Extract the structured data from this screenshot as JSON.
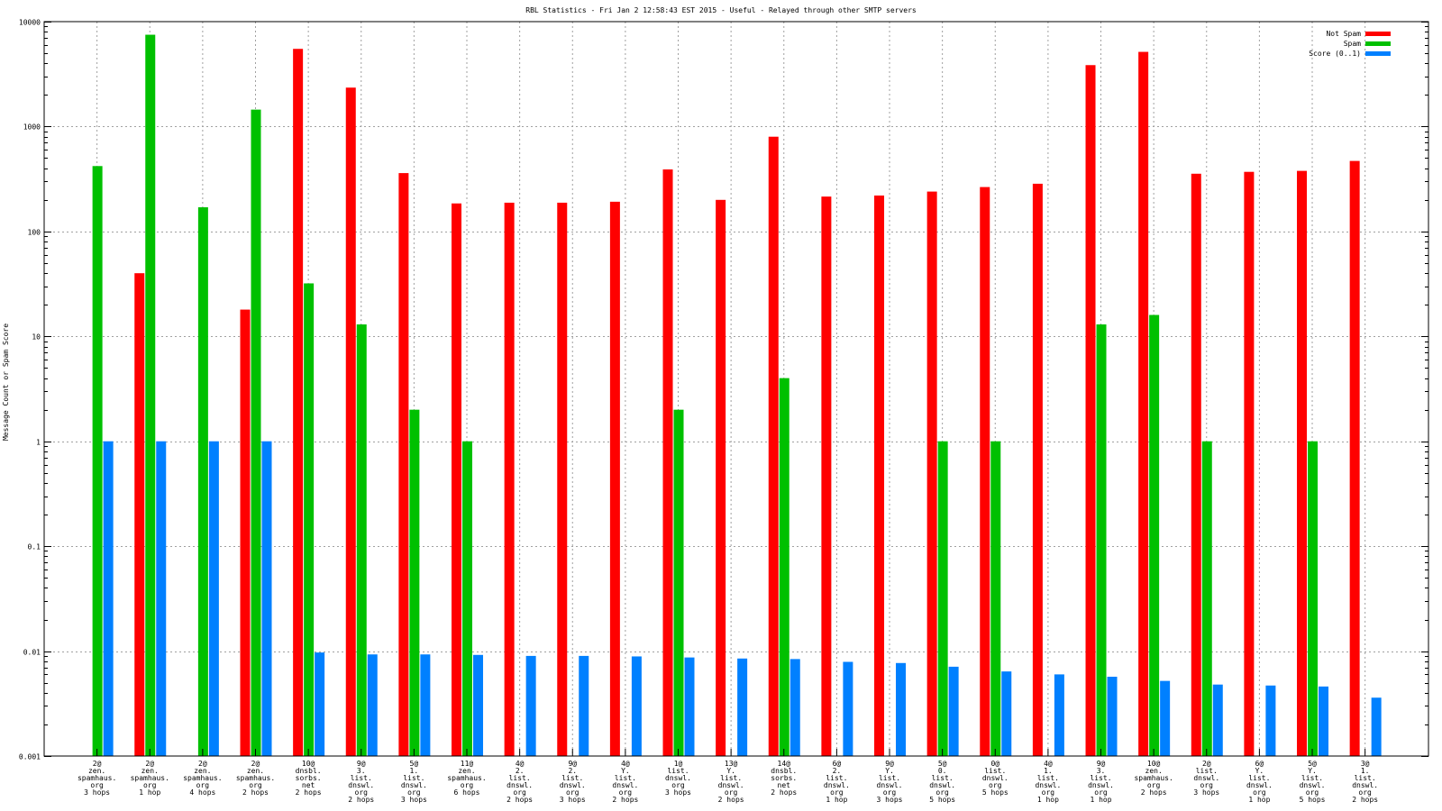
{
  "chart_data": {
    "type": "bar",
    "title": "RBL Statistics - Fri Jan  2 12:58:43 EST 2015 - Useful - Relayed through other SMTP servers",
    "xlabel": "",
    "ylabel": "Message Count or Spam Score",
    "yscale": "log",
    "ylim": [
      0.001,
      10000
    ],
    "yticks": [
      "0.001",
      "0.01",
      "0.1",
      "1",
      "10",
      "100",
      "1000",
      "10000"
    ],
    "grid": true,
    "legend_position": "top-right",
    "categories": [
      [
        "2@",
        "zen.",
        "spamhaus.",
        "org",
        "3 hops"
      ],
      [
        "2@",
        "zen.",
        "spamhaus.",
        "org",
        "1 hop"
      ],
      [
        "2@",
        "zen.",
        "spamhaus.",
        "org",
        "4 hops"
      ],
      [
        "2@",
        "zen.",
        "spamhaus.",
        "org",
        "2 hops"
      ],
      [
        "10@",
        "dnsbl.",
        "sorbs.",
        "net",
        "2 hops"
      ],
      [
        "9@",
        "3.",
        "list.",
        "dnswl.",
        "org",
        "2 hops"
      ],
      [
        "5@",
        "1.",
        "list.",
        "dnswl.",
        "org",
        "3 hops"
      ],
      [
        "11@",
        "zen.",
        "spamhaus.",
        "org",
        "6 hops"
      ],
      [
        "4@",
        "2.",
        "list.",
        "dnswl.",
        "org",
        "2 hops"
      ],
      [
        "9@",
        "2.",
        "list.",
        "dnswl.",
        "org",
        "3 hops"
      ],
      [
        "4@",
        "Y.",
        "list.",
        "dnswl.",
        "org",
        "2 hops"
      ],
      [
        "1@",
        "list.",
        "dnswl.",
        "org",
        "3 hops"
      ],
      [
        "13@",
        "Y.",
        "list.",
        "dnswl.",
        "org",
        "2 hops"
      ],
      [
        "14@",
        "dnsbl.",
        "sorbs.",
        "net",
        "2 hops"
      ],
      [
        "6@",
        "2.",
        "list.",
        "dnswl.",
        "org",
        "1 hop"
      ],
      [
        "9@",
        "Y.",
        "list.",
        "dnswl.",
        "org",
        "3 hops"
      ],
      [
        "5@",
        "0.",
        "list.",
        "dnswl.",
        "org",
        "5 hops"
      ],
      [
        "0@",
        "list.",
        "dnswl.",
        "org",
        "5 hops"
      ],
      [
        "4@",
        "1.",
        "list.",
        "dnswl.",
        "org",
        "1 hop"
      ],
      [
        "9@",
        "3.",
        "list.",
        "dnswl.",
        "org",
        "1 hop"
      ],
      [
        "10@",
        "zen.",
        "spamhaus.",
        "org",
        "2 hops"
      ],
      [
        "2@",
        "list.",
        "dnswl.",
        "org",
        "3 hops"
      ],
      [
        "6@",
        "Y.",
        "list.",
        "dnswl.",
        "org",
        "1 hop"
      ],
      [
        "5@",
        "Y.",
        "list.",
        "dnswl.",
        "org",
        "5 hops"
      ],
      [
        "3@",
        "1.",
        "list.",
        "dnswl.",
        "org",
        "2 hops"
      ]
    ],
    "series": [
      {
        "name": "Not Spam",
        "color": "#ff0000",
        "values": [
          null,
          40,
          null,
          18,
          5500,
          2350,
          360,
          185,
          188,
          188,
          192,
          390,
          200,
          800,
          215,
          220,
          240,
          265,
          285,
          3850,
          5150,
          355,
          370,
          378,
          470
        ]
      },
      {
        "name": "Spam",
        "color": "#00c000",
        "values": [
          420,
          7500,
          170,
          1450,
          32,
          13,
          2,
          1,
          null,
          null,
          null,
          2,
          null,
          4,
          null,
          null,
          1,
          1,
          null,
          13,
          16,
          1,
          null,
          1,
          null
        ]
      },
      {
        "name": "Score (0..1)",
        "color": "#0080ff",
        "values": [
          1,
          1,
          1,
          1,
          0.0097,
          0.0093,
          0.0093,
          0.0092,
          0.009,
          0.009,
          0.0089,
          0.0087,
          0.0085,
          0.0084,
          0.0079,
          0.0077,
          0.0071,
          0.0064,
          0.006,
          0.0057,
          0.0052,
          0.0048,
          0.0047,
          0.0046,
          0.0036
        ]
      }
    ]
  }
}
